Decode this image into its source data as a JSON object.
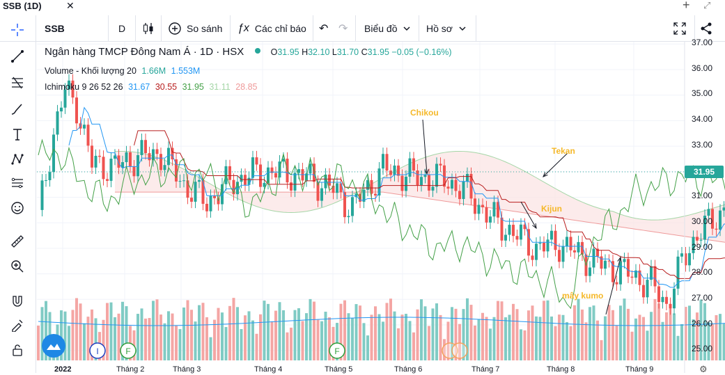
{
  "window": {
    "title": "SSB (1D)",
    "close": "✕",
    "plus": "+",
    "expand": "⤢"
  },
  "toolbar": {
    "symbol": "SSB",
    "interval": "D",
    "compare_label": "So sánh",
    "indicators_label": "Các chỉ báo",
    "chart_type_label": "Biểu đồ",
    "profile_label": "Hồ sơ"
  },
  "legend": {
    "title": "Ngân hàng TMCP Đông Nam Á · 1D · HSX",
    "ohlc": {
      "o_label": "O",
      "o": "31.95",
      "h_label": "H",
      "h": "32.10",
      "l_label": "L",
      "l": "31.70",
      "c_label": "C",
      "c": "31.95",
      "change": "−0.05 (−0.16%)"
    },
    "volume": {
      "label": "Volume - Khối lượng 20",
      "v1": "1.66M",
      "v2": "1.553M"
    },
    "ichimoku": {
      "label": "Ichimoku 9 26 52 26",
      "v1": "31.67",
      "v2": "30.55",
      "v3": "31.95",
      "v4": "31.11",
      "v5": "28.85"
    }
  },
  "colors": {
    "up": "#26a69a",
    "down": "#ef5350",
    "tenkan": "#2196f3",
    "kijun": "#b71c1c",
    "chikou": "#43a047",
    "spanA": "#a5d6a7",
    "spanB": "#ef9a9a",
    "annotation": "#f5b829"
  },
  "price_axis": [
    "37.00",
    "36.00",
    "35.00",
    "34.00",
    "33.00",
    "32.00",
    "31.00",
    "30.00",
    "29.00",
    "28.00",
    "27.00",
    "26.00",
    "25.00"
  ],
  "current_price": "31.95",
  "time_axis": [
    "2022",
    "Tháng 2",
    "Tháng 3",
    "Tháng 4",
    "Tháng 5",
    "Tháng 6",
    "Tháng 7",
    "Tháng 8",
    "Tháng 9"
  ],
  "annotations": {
    "chikou": "Chikou",
    "tekan": "Tekan",
    "kijun": "Kijun",
    "kumo": "mây kumo"
  },
  "event_markers": [
    "I",
    "F",
    "F"
  ],
  "icons": [
    "crosshair-icon",
    "trendline-icon",
    "fib-icon",
    "brush-icon",
    "text-icon",
    "pattern-icon",
    "forecast-icon",
    "emoji-icon",
    "ruler-icon",
    "zoom-icon",
    "magnet-icon",
    "lock-drawing-icon",
    "lock-icon",
    "fullscreen-icon",
    "share-icon",
    "candles-icon",
    "undo-icon",
    "redo-icon",
    "settings-icon"
  ]
}
